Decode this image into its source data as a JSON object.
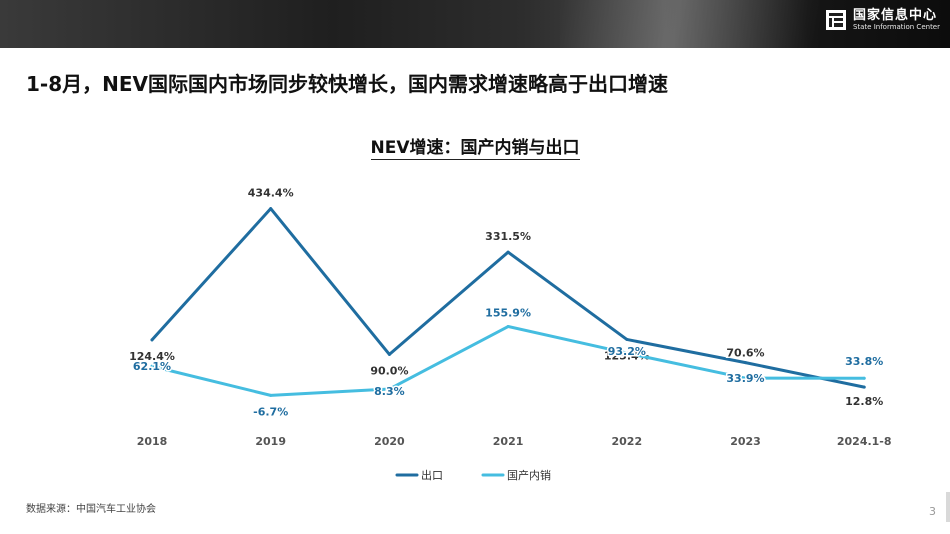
{
  "header": {
    "org_cn": "国家信息中心",
    "org_en": "State Information Center"
  },
  "slide": {
    "headline": "1-8月，NEV国际国内市场同步较快增长，国内需求增速略高于出口增速",
    "source": "数据来源：中国汽车工业协会",
    "page_number": "3"
  },
  "colors": {
    "export": "#1f6da0",
    "domestic": "#45bde0",
    "banner": "#1f1f1f"
  },
  "chart_data": {
    "type": "line",
    "title": "NEV增速：国产内销与出口",
    "categories": [
      "2018",
      "2019",
      "2020",
      "2021",
      "2022",
      "2023",
      "2024.1-8"
    ],
    "series": [
      {
        "name": "出口",
        "values": [
          124.4,
          434.4,
          90.0,
          331.5,
          125.4,
          70.6,
          12.8
        ],
        "labels": [
          "124.4%",
          "434.4%",
          "90.0%",
          "331.5%",
          "125.4%",
          "70.6%",
          "12.8%"
        ]
      },
      {
        "name": "国产内销",
        "values": [
          62.1,
          -6.7,
          8.3,
          155.9,
          93.2,
          33.9,
          33.8
        ],
        "labels": [
          "62.1%",
          "-6.7%",
          "8.3%",
          "155.9%",
          "93.2%",
          "33.9%",
          "33.8%"
        ]
      }
    ],
    "ylim": [
      -20,
      450
    ],
    "legend_position": "bottom-center",
    "grid": false
  }
}
